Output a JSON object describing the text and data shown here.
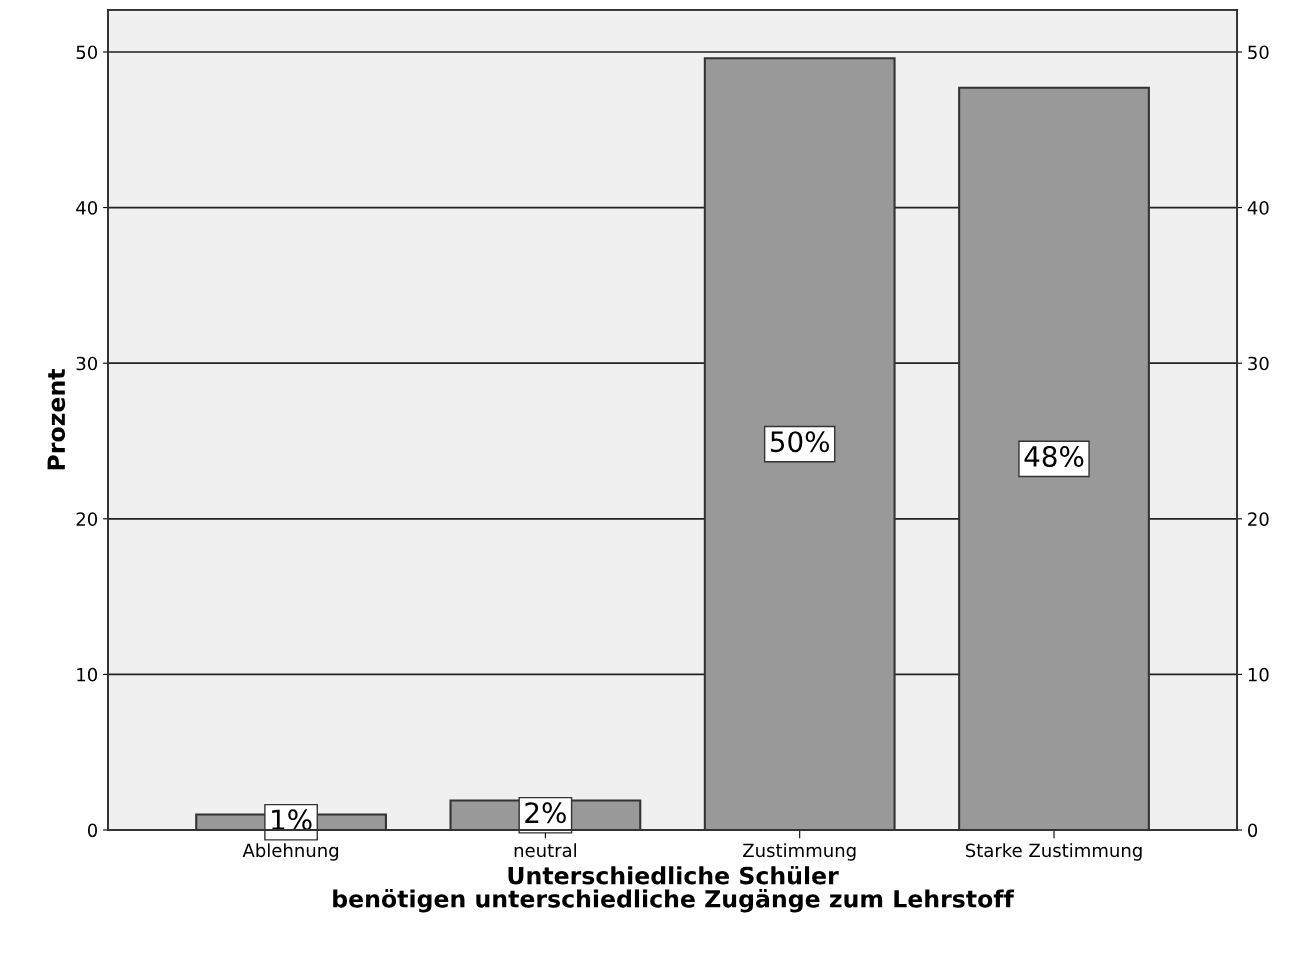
{
  "chart_data": {
    "type": "bar",
    "categories": [
      "Ablehnung",
      "neutral",
      "Zustimmung",
      "Starke Zustimmung"
    ],
    "values": [
      1.0,
      1.9,
      49.6,
      47.7
    ],
    "value_labels": [
      "1%",
      "2%",
      "50%",
      "48%"
    ],
    "color": "#999999",
    "xlabel": "Unterschiedliche Schüler\nbenötigen unterschiedliche Zugänge zum Lehrstoff",
    "ylabel": "Prozent",
    "ylim": [
      0,
      52.7
    ],
    "yticks": [
      0,
      10,
      20,
      30,
      40,
      50
    ],
    "y2lim": [
      0,
      52.7
    ],
    "y2ticks": [
      0,
      10,
      20,
      30,
      40,
      50
    ],
    "grid": "y"
  }
}
